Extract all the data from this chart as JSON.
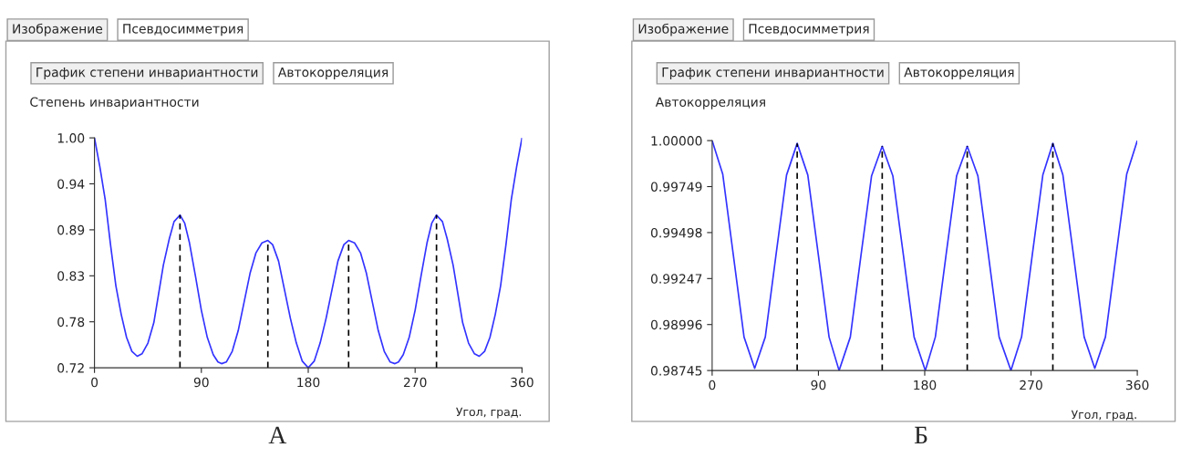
{
  "chart_data": [
    {
      "type": "line",
      "title": "Степень инвариантности",
      "xlabel": "Угол, град.",
      "annotations": [
        "Изображение",
        "Псевдосимметрия",
        "График степени инвариантности",
        "Автокорреляция",
        "А"
      ],
      "x": [
        0,
        4.5,
        9,
        13.5,
        18,
        22.5,
        27,
        31.5,
        36,
        40,
        45,
        50,
        54,
        58,
        63,
        67,
        72,
        76,
        80,
        85,
        90,
        95,
        100,
        104,
        107,
        111,
        116,
        121,
        126,
        131,
        136,
        141,
        146,
        150,
        155,
        160,
        165,
        170,
        175,
        180,
        185,
        190,
        195,
        200,
        205,
        210,
        214,
        219,
        224,
        229,
        234,
        239,
        244,
        249,
        253,
        256,
        260,
        265,
        270,
        275,
        280,
        284,
        288,
        293,
        297,
        302,
        306,
        310,
        315,
        320,
        324,
        328.5,
        333,
        337.5,
        342,
        346.5,
        351,
        355.5,
        360
      ],
      "series": [
        {
          "color": "#3333ff",
          "values": [
            1.0,
            0.965,
            0.925,
            0.87,
            0.82,
            0.785,
            0.757,
            0.74,
            0.734,
            0.737,
            0.75,
            0.775,
            0.81,
            0.845,
            0.877,
            0.898,
            0.906,
            0.896,
            0.872,
            0.832,
            0.79,
            0.757,
            0.736,
            0.727,
            0.725,
            0.727,
            0.74,
            0.765,
            0.8,
            0.835,
            0.86,
            0.872,
            0.875,
            0.87,
            0.85,
            0.815,
            0.78,
            0.75,
            0.728,
            0.72,
            0.728,
            0.75,
            0.78,
            0.815,
            0.85,
            0.87,
            0.875,
            0.872,
            0.86,
            0.835,
            0.8,
            0.765,
            0.74,
            0.727,
            0.725,
            0.727,
            0.736,
            0.757,
            0.79,
            0.832,
            0.872,
            0.896,
            0.906,
            0.898,
            0.877,
            0.845,
            0.81,
            0.775,
            0.75,
            0.737,
            0.734,
            0.74,
            0.757,
            0.785,
            0.82,
            0.87,
            0.925,
            0.965,
            1.0
          ]
        }
      ],
      "ref_lines": [
        {
          "axis": "x",
          "value": 72,
          "color": "#000000",
          "line_style": "dashed"
        },
        {
          "axis": "x",
          "value": 146,
          "color": "#000000",
          "line_style": "dashed"
        },
        {
          "axis": "x",
          "value": 214,
          "color": "#000000",
          "line_style": "dashed"
        },
        {
          "axis": "x",
          "value": 288,
          "color": "#000000",
          "line_style": "dashed"
        }
      ],
      "xlim": [
        0,
        360
      ],
      "xticks": [
        0,
        90,
        180,
        270,
        360
      ],
      "ylim": [
        0.72,
        1.0
      ],
      "yticks": [
        0.72,
        {
          "value": 0.776,
          "label": "0.78"
        },
        {
          "value": 0.832,
          "label": "0.83"
        },
        {
          "value": 0.888,
          "label": "0.89"
        },
        {
          "value": 0.944,
          "label": "0.94"
        },
        {
          "value": 1.0,
          "label": "1.00"
        }
      ],
      "grid": false,
      "legend": false
    },
    {
      "type": "line",
      "title": "Автокорреляция",
      "xlabel": "Угол, град.",
      "annotations": [
        "Изображение",
        "Псевдосимметрия",
        "График степени инвариантности",
        "Автокорреляция",
        "Б"
      ],
      "x": [
        0,
        9,
        18,
        27,
        36,
        45,
        54,
        63,
        72,
        81,
        90,
        99,
        107.5,
        117,
        126,
        135,
        144,
        153,
        162,
        171,
        180.5,
        189,
        198,
        207,
        216,
        225,
        234,
        243,
        253,
        262,
        271,
        280,
        288.5,
        297,
        306,
        315,
        324,
        333,
        342,
        351,
        360
      ],
      "series": [
        {
          "color": "#3333ff",
          "values": [
            1.0,
            0.99816,
            0.99372,
            0.98928,
            0.98757,
            0.98928,
            0.99372,
            0.99812,
            0.99985,
            0.99812,
            0.99372,
            0.98928,
            0.98745,
            0.98928,
            0.99372,
            0.99808,
            0.99969,
            0.99808,
            0.99372,
            0.98928,
            0.98745,
            0.98928,
            0.99372,
            0.99808,
            0.99969,
            0.99808,
            0.99372,
            0.98928,
            0.98745,
            0.98928,
            0.99372,
            0.99812,
            0.99985,
            0.99812,
            0.99372,
            0.98928,
            0.98757,
            0.98928,
            0.99372,
            0.99816,
            1.0
          ]
        }
      ],
      "ref_lines": [
        {
          "axis": "x",
          "value": 72,
          "color": "#000000",
          "line_style": "dashed"
        },
        {
          "axis": "x",
          "value": 144,
          "color": "#000000",
          "line_style": "dashed"
        },
        {
          "axis": "x",
          "value": 216,
          "color": "#000000",
          "line_style": "dashed"
        },
        {
          "axis": "x",
          "value": 288.5,
          "color": "#000000",
          "line_style": "dashed"
        }
      ],
      "xlim": [
        0,
        360
      ],
      "xticks": [
        0,
        90,
        180,
        270,
        360
      ],
      "ylim": [
        0.98745,
        1.0
      ],
      "yticks": [
        {
          "value": 0.98745,
          "label": "0.98745"
        },
        {
          "value": 0.98996,
          "label": "0.98996"
        },
        {
          "value": 0.99247,
          "label": "0.99247"
        },
        {
          "value": 0.99498,
          "label": "0.99498"
        },
        {
          "value": 0.99749,
          "label": "0.99749"
        },
        {
          "value": 1.0,
          "label": "1.00000"
        }
      ],
      "grid": false,
      "legend": false
    }
  ]
}
